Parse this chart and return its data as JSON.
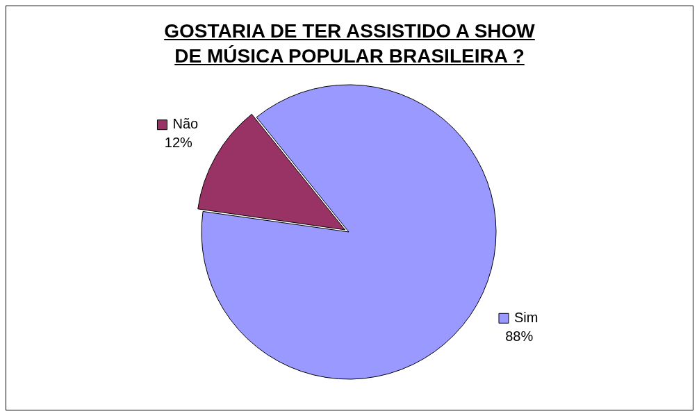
{
  "chart_data": {
    "type": "pie",
    "title": "GOSTARIA DE TER ASSISTIDO A SHOW\nDE MÚSICA POPULAR BRASILEIRA ?",
    "categories": [
      "Não",
      "Sim"
    ],
    "values": [
      12,
      88
    ],
    "colors": [
      "#993366",
      "#9999ff"
    ],
    "value_labels": [
      "12%",
      "88%"
    ],
    "legend": "right"
  }
}
